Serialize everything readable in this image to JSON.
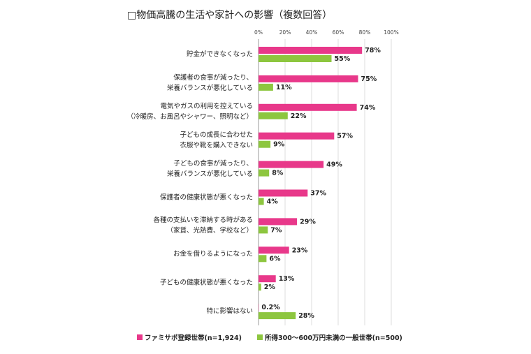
{
  "chart_data": {
    "type": "hbar",
    "title": "□物価高騰の生活や家計への影響（複数回答）",
    "categories": [
      "貯金ができなくなった",
      "保護者の食事が減ったり、\n栄養バランスが悪化している",
      "電気やガスの利用を控えている\n（冷暖房、お風呂やシャワー、照明など）",
      "子どもの成長に合わせた\n衣服や靴を購入できない",
      "子どもの食事が減ったり、\n栄養バランスが悪化している",
      "保護者の健康状態が悪くなった",
      "各種の支払いを滞納する時がある\n（家賃、光熱費、学校など）",
      "お金を借りるようになった",
      "子どもの健康状態が悪くなった",
      "特に影響はない"
    ],
    "series": [
      {
        "name": "ファミサポ登録世帯(n=1,924)",
        "color": "#e8388a",
        "values": [
          78,
          75,
          74,
          57,
          49,
          37,
          29,
          23,
          13,
          0.2
        ],
        "value_labels": [
          "78%",
          "75%",
          "74%",
          "57%",
          "49%",
          "37%",
          "29%",
          "23%",
          "13%",
          "0.2%"
        ]
      },
      {
        "name": "所得300～600万円未満の一般世帯(n=500)",
        "color": "#8dc63f",
        "values": [
          55,
          11,
          22,
          9,
          8,
          4,
          7,
          6,
          2,
          28
        ],
        "value_labels": [
          "55%",
          "11%",
          "22%",
          "9%",
          "8%",
          "4%",
          "7%",
          "6%",
          "2%",
          "28%"
        ]
      }
    ],
    "xlim": [
      0,
      100
    ],
    "xticks": [
      {
        "value": 0,
        "label": "0%"
      },
      {
        "value": 20,
        "label": "20%"
      },
      {
        "value": 40,
        "label": "40%"
      },
      {
        "value": 60,
        "label": "60%"
      },
      {
        "value": 80,
        "label": "80%"
      },
      {
        "value": 100,
        "label": "100%"
      }
    ],
    "grid": true,
    "legend": "bottom"
  }
}
